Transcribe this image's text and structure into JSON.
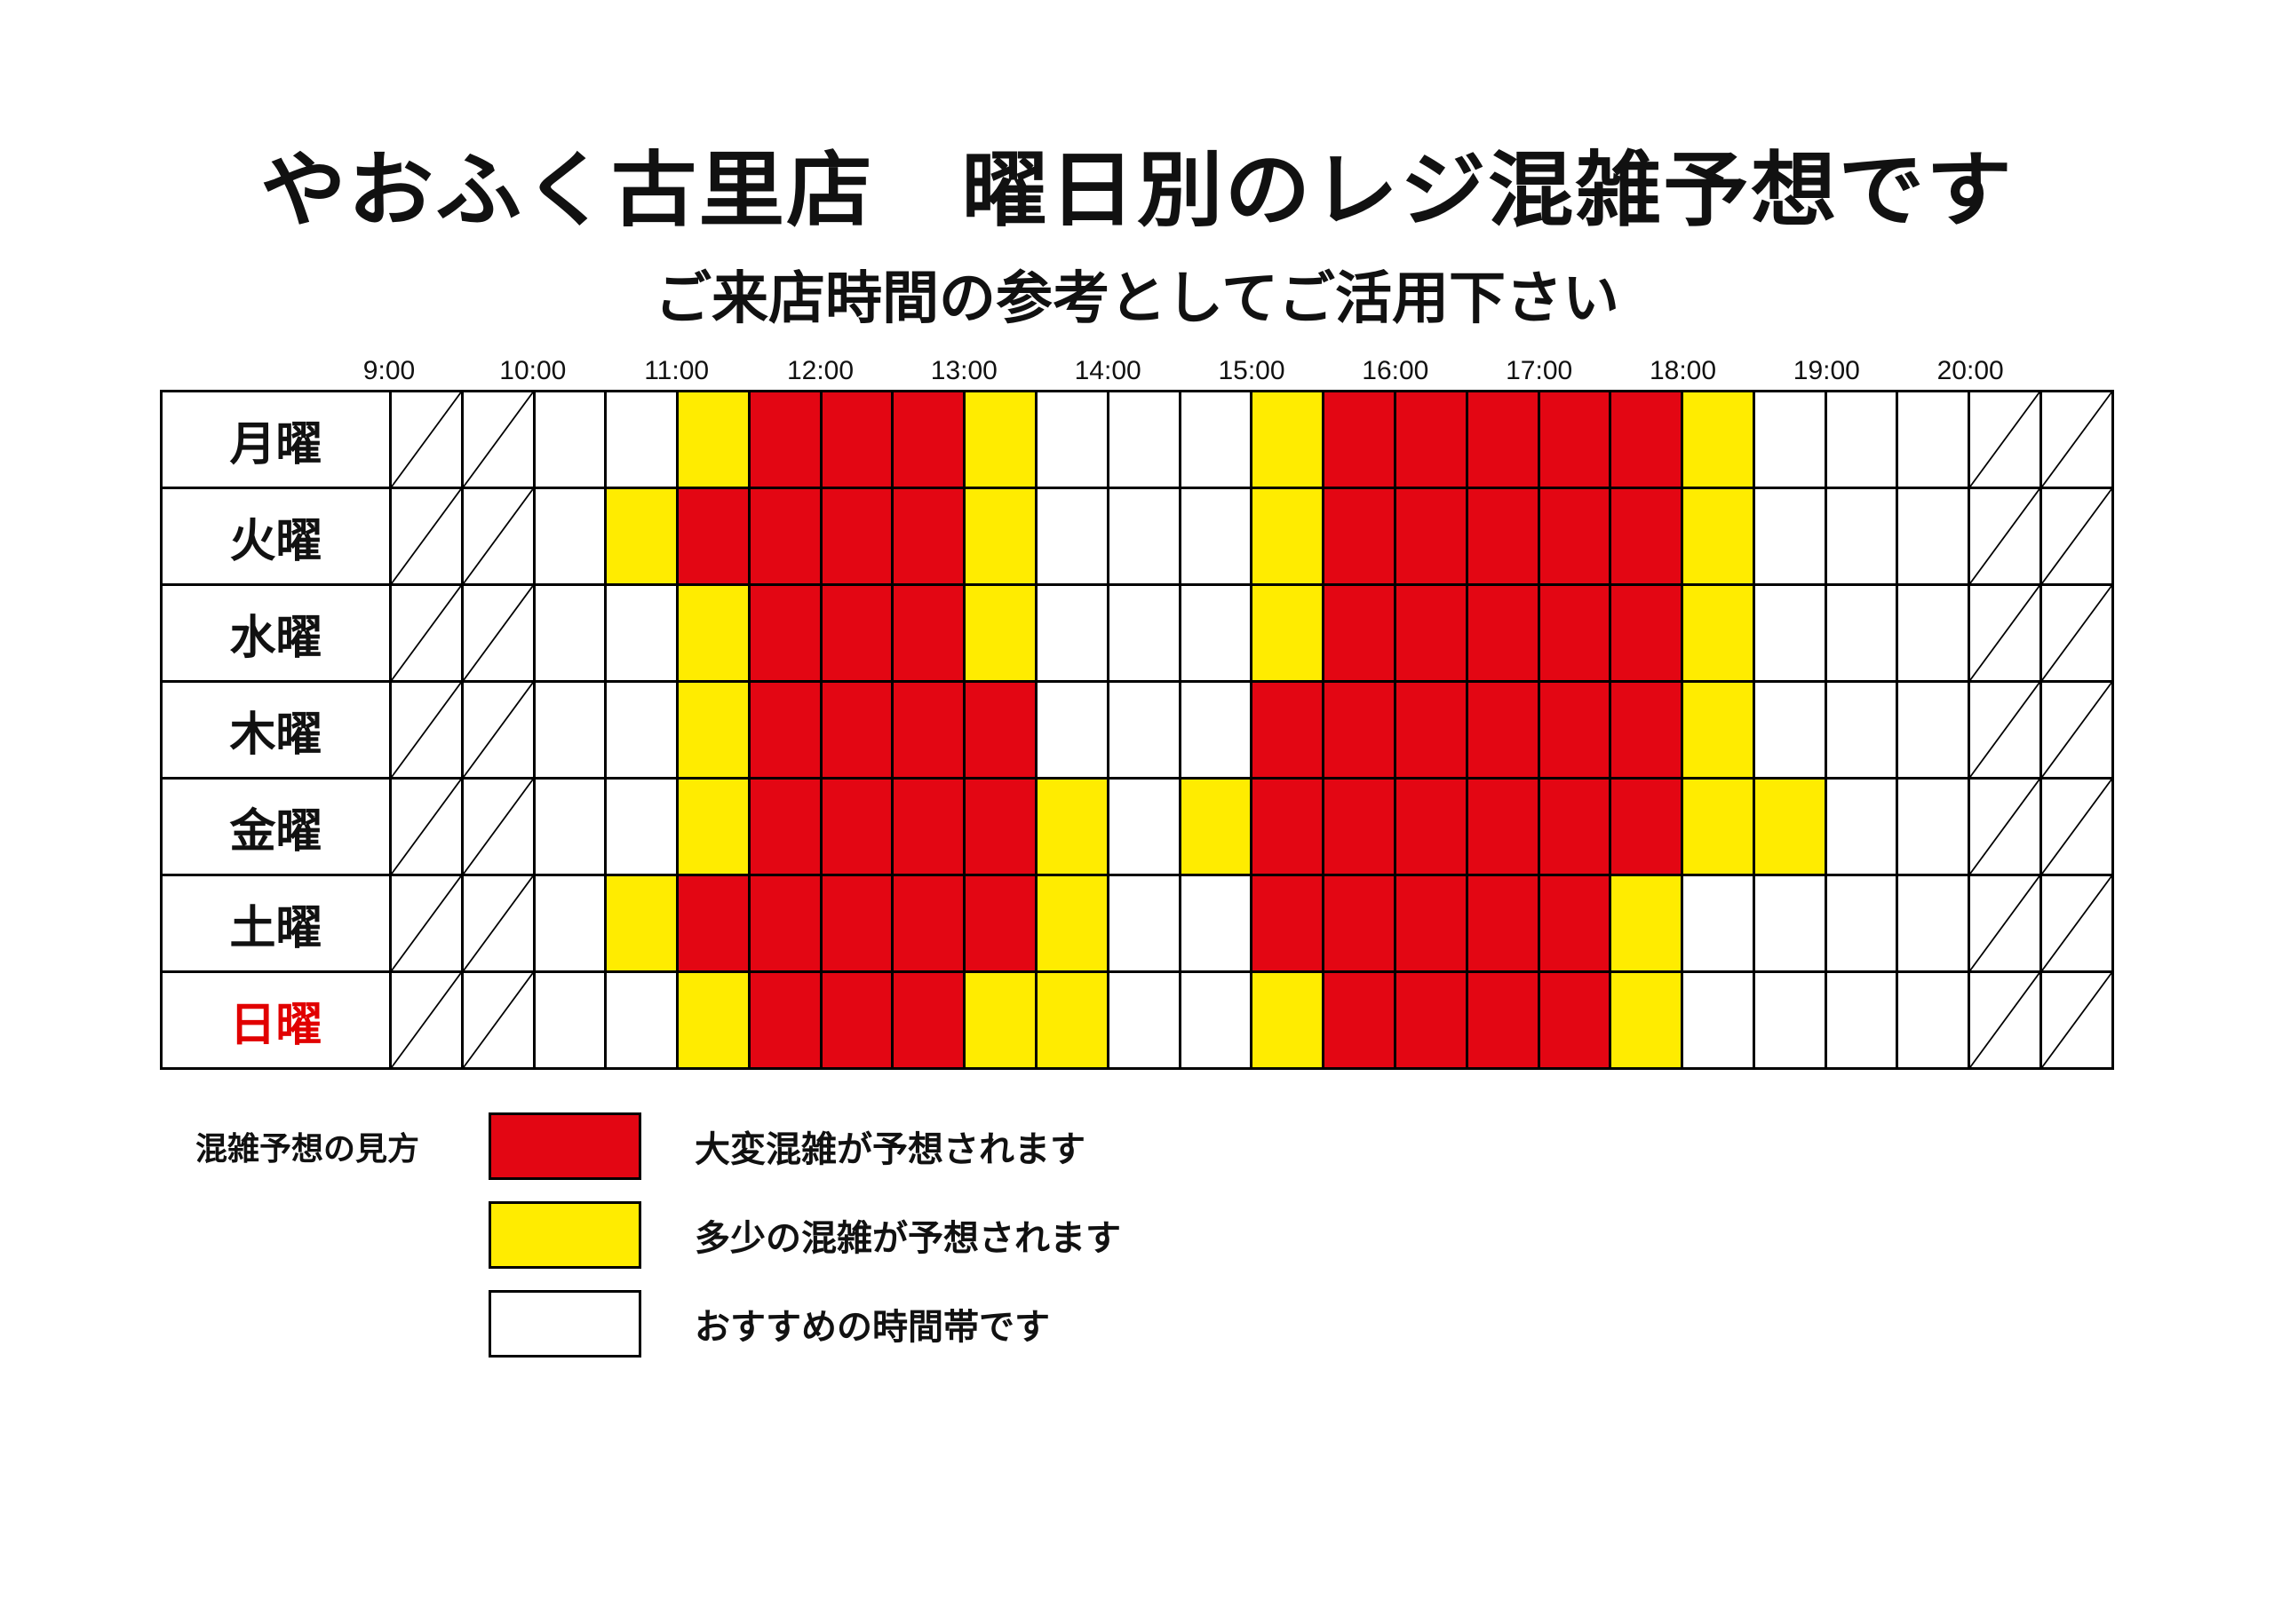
{
  "title": "やおふく古里店　曜日別のレジ混雑予想です",
  "subtitle": "ご来店時間の参考としてご活用下さい",
  "colors": {
    "red": "#e30613",
    "yellow": "#ffec00",
    "white": "#ffffff",
    "border": "#000000",
    "text": "#111111",
    "sunday": "#e10000",
    "background": "#ffffff"
  },
  "fonts": {
    "title_size": 92,
    "subtitle_size": 64,
    "time_label_size": 30,
    "day_label_size": 52,
    "legend_size": 40,
    "legend_title_size": 36
  },
  "time_labels": [
    "9:00",
    "10:00",
    "11:00",
    "12:00",
    "13:00",
    "14:00",
    "15:00",
    "16:00",
    "17:00",
    "18:00",
    "19:00",
    "20:00"
  ],
  "slot_count": 24,
  "slot_legend": {
    "x": "closed",
    "w": "white",
    "y": "yellow",
    "r": "red"
  },
  "days": [
    {
      "label": "月曜",
      "style": "normal",
      "slots": [
        "x",
        "x",
        "w",
        "w",
        "y",
        "r",
        "r",
        "r",
        "y",
        "w",
        "w",
        "w",
        "y",
        "r",
        "r",
        "r",
        "r",
        "r",
        "y",
        "w",
        "w",
        "w",
        "x",
        "x"
      ]
    },
    {
      "label": "火曜",
      "style": "normal",
      "slots": [
        "x",
        "x",
        "w",
        "y",
        "r",
        "r",
        "r",
        "r",
        "y",
        "w",
        "w",
        "w",
        "y",
        "r",
        "r",
        "r",
        "r",
        "r",
        "y",
        "w",
        "w",
        "w",
        "x",
        "x"
      ]
    },
    {
      "label": "水曜",
      "style": "normal",
      "slots": [
        "x",
        "x",
        "w",
        "w",
        "y",
        "r",
        "r",
        "r",
        "y",
        "w",
        "w",
        "w",
        "y",
        "r",
        "r",
        "r",
        "r",
        "r",
        "y",
        "w",
        "w",
        "w",
        "x",
        "x"
      ]
    },
    {
      "label": "木曜",
      "style": "normal",
      "slots": [
        "x",
        "x",
        "w",
        "w",
        "y",
        "r",
        "r",
        "r",
        "r",
        "w",
        "w",
        "w",
        "r",
        "r",
        "r",
        "r",
        "r",
        "r",
        "y",
        "w",
        "w",
        "w",
        "x",
        "x"
      ]
    },
    {
      "label": "金曜",
      "style": "normal",
      "slots": [
        "x",
        "x",
        "w",
        "w",
        "y",
        "r",
        "r",
        "r",
        "r",
        "y",
        "w",
        "y",
        "r",
        "r",
        "r",
        "r",
        "r",
        "r",
        "y",
        "y",
        "w",
        "w",
        "x",
        "x"
      ]
    },
    {
      "label": "土曜",
      "style": "normal",
      "slots": [
        "x",
        "x",
        "w",
        "y",
        "r",
        "r",
        "r",
        "r",
        "r",
        "y",
        "w",
        "w",
        "r",
        "r",
        "r",
        "r",
        "r",
        "y",
        "w",
        "w",
        "w",
        "w",
        "x",
        "x"
      ]
    },
    {
      "label": "日曜",
      "style": "sunday",
      "slots": [
        "x",
        "x",
        "w",
        "w",
        "y",
        "r",
        "r",
        "r",
        "y",
        "y",
        "w",
        "w",
        "y",
        "r",
        "r",
        "r",
        "r",
        "y",
        "w",
        "w",
        "w",
        "w",
        "x",
        "x"
      ]
    }
  ],
  "legend": {
    "title": "混雑予想の見方",
    "items": [
      {
        "swatch": "red",
        "text": "大変混雑が予想されます"
      },
      {
        "swatch": "yellow",
        "text": "多少の混雑が予想されます"
      },
      {
        "swatch": "white",
        "text": "おすすめの時間帯です"
      }
    ]
  }
}
